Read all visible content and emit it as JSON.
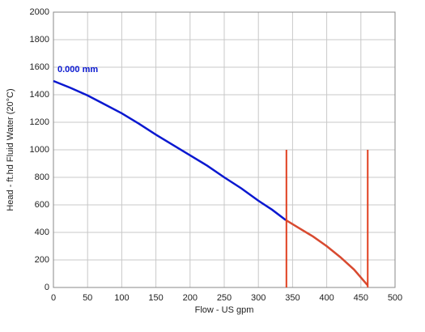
{
  "chart_data": {
    "type": "line",
    "x_label": "Flow - US gpm",
    "y_label": "Head - ft.hd Fluid Water (20°C)",
    "series": [
      {
        "name": "0.000 mm",
        "color": "#0a18d0",
        "x": [
          0,
          25,
          50,
          75,
          100,
          125,
          150,
          175,
          200,
          225,
          250,
          275,
          300,
          320,
          340
        ],
        "values": [
          1500,
          1450,
          1395,
          1330,
          1265,
          1190,
          1110,
          1035,
          960,
          885,
          800,
          720,
          630,
          565,
          490
        ]
      },
      {
        "color": "#d84a30",
        "x": [
          340,
          360,
          380,
          400,
          420,
          440,
          460
        ],
        "values": [
          490,
          430,
          370,
          300,
          220,
          130,
          15
        ]
      }
    ],
    "vlines": [
      {
        "x": 341,
        "y": [
          0,
          1000
        ],
        "color": "#e04020"
      },
      {
        "x": 460,
        "y": [
          0,
          1000
        ],
        "color": "#e04020"
      }
    ],
    "xlim": [
      0,
      500
    ],
    "xticks": [
      0,
      50,
      100,
      150,
      200,
      250,
      300,
      350,
      400,
      450,
      500
    ],
    "ylim": [
      0,
      2000
    ],
    "yticks": [
      0,
      200,
      400,
      600,
      800,
      1000,
      1200,
      1400,
      1600,
      1800,
      2000
    ],
    "grid": true
  }
}
